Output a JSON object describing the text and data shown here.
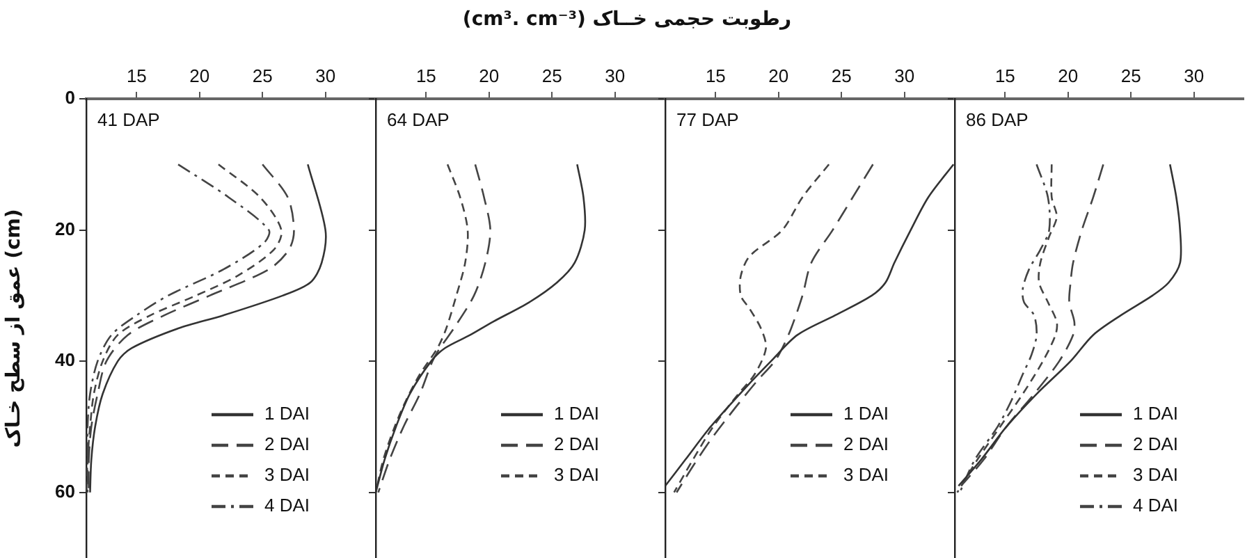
{
  "chart_data": [
    {
      "type": "line",
      "xlabel": "رطوبت حجمی خــاک (cm³. cm⁻³)",
      "ylabel": "عمق از سطح خـاک (cm)",
      "annotations": [
        "41 DAP"
      ],
      "xlim": [
        11,
        34
      ],
      "xticks": [
        15,
        20,
        25,
        30
      ],
      "ylim": [
        70,
        0
      ],
      "yticks": [
        0,
        20,
        40,
        60
      ],
      "legend": "bottom right",
      "marker": "none",
      "series": [
        {
          "name": "1 DAI",
          "color": "#333333",
          "line_style": "solid",
          "x": [
            28.6,
            30,
            29.7,
            28.8,
            26.6,
            21.9,
            18.3,
            14.6,
            13.5,
            12.3,
            11.7,
            11.4,
            11.3
          ],
          "values": [
            10,
            20,
            25,
            28,
            30,
            33,
            35,
            38,
            40,
            45,
            50,
            55,
            60
          ]
        },
        {
          "name": "2 DAI",
          "color": "#444444",
          "line_style": "dashed",
          "x": [
            25,
            27,
            27.5,
            27.1,
            25.5,
            20.8,
            17.2,
            14.3,
            12.6,
            11.9,
            11.4,
            11.2,
            11.2
          ],
          "values": [
            10,
            15,
            20,
            23,
            26,
            30,
            33,
            36,
            40,
            45,
            50,
            55,
            60
          ]
        },
        {
          "name": "3 DAI",
          "color": "#444444",
          "line_style": "dashed",
          "x": [
            21.5,
            24.8,
            26.5,
            25.9,
            23,
            19.7,
            16.1,
            13.5,
            12.3,
            11.6,
            11.3,
            11.1,
            11
          ],
          "values": [
            10,
            15,
            20,
            23,
            27,
            30,
            33,
            36,
            40,
            45,
            50,
            55,
            60
          ]
        },
        {
          "name": "4 DAI",
          "color": "#444444",
          "line_style": "dashed",
          "x": [
            18.3,
            22.3,
            25.5,
            25.1,
            21.9,
            17.5,
            15,
            13,
            11.9,
            11.3,
            11.1,
            11.1,
            11.1
          ],
          "values": [
            10,
            15,
            20,
            22,
            26,
            30,
            33,
            36,
            40,
            45,
            50,
            55,
            60
          ]
        }
      ]
    },
    {
      "type": "line",
      "annotations": [
        "64 DAP"
      ],
      "xlim": [
        11,
        34
      ],
      "xticks": [
        15,
        20,
        25,
        30
      ],
      "ylim": [
        70,
        0
      ],
      "yticks": [
        0,
        20,
        40,
        60
      ],
      "tick_labels": "x",
      "legend": "bottom right",
      "marker": "none",
      "series": [
        {
          "name": "1 DAI",
          "color": "#333333",
          "line_style": "solid",
          "x": [
            27,
            27.5,
            27.6,
            26.8,
            25.4,
            23.2,
            20.3,
            18.5,
            16.5,
            15.4,
            13.7,
            12.6,
            11.7,
            11
          ],
          "values": [
            10,
            15,
            20,
            25,
            28,
            31,
            34,
            36,
            38,
            40,
            45,
            50,
            55,
            60
          ]
        },
        {
          "name": "2 DAI",
          "color": "#444444",
          "line_style": "dashed",
          "x": [
            18.9,
            19.6,
            20.1,
            19.7,
            18.8,
            17.2,
            16.1,
            15.5,
            14.5,
            13.2,
            12.1,
            11.2
          ],
          "values": [
            10,
            15,
            20,
            25,
            30,
            35,
            38,
            40,
            45,
            50,
            55,
            60
          ]
        },
        {
          "name": "3 DAI",
          "color": "#444444",
          "line_style": "dashed",
          "x": [
            16.7,
            17.7,
            18.3,
            18.1,
            17.4,
            16.6,
            15.9,
            14.5,
            13.4,
            12.5,
            11.6,
            11
          ],
          "values": [
            10,
            15,
            20,
            25,
            30,
            35,
            38,
            42,
            46,
            50,
            55,
            60
          ]
        }
      ]
    },
    {
      "type": "line",
      "annotations": [
        "77 DAP"
      ],
      "xlim": [
        11,
        34
      ],
      "xticks": [
        15,
        20,
        25,
        30
      ],
      "ylim": [
        70,
        0
      ],
      "yticks": [
        0,
        20,
        40,
        60
      ],
      "tick_labels": "x",
      "legend": "bottom right",
      "marker": "none",
      "series": [
        {
          "name": "1 DAI",
          "color": "#333333",
          "line_style": "solid",
          "x": [
            33.9,
            31.9,
            30.5,
            29.2,
            28.5,
            27.4,
            24.5,
            21.5,
            19.4,
            17.4,
            14.6,
            12.6,
            11
          ],
          "values": [
            10,
            15,
            20,
            25,
            28,
            30,
            33,
            36,
            40,
            44,
            50,
            55,
            59
          ]
        },
        {
          "name": "2 DAI",
          "color": "#444444",
          "line_style": "dashed",
          "x": [
            27.5,
            25.9,
            24.3,
            22.6,
            21.9,
            21,
            20.3,
            19.7,
            18.3,
            16.6,
            14.6,
            13.2,
            11.9
          ],
          "values": [
            10,
            15,
            20,
            25,
            30,
            35,
            38,
            40,
            43,
            47,
            52,
            56,
            60
          ]
        },
        {
          "name": "3 DAI",
          "color": "#444444",
          "line_style": "dashed",
          "x": [
            24,
            21.9,
            20.3,
            17.7,
            17,
            17,
            17.7,
            18.6,
            19,
            18.1,
            16.8,
            14.8,
            13.2,
            11.7
          ],
          "values": [
            10,
            15,
            20,
            24,
            27,
            30,
            32,
            35,
            38,
            42,
            45,
            50,
            55,
            60
          ]
        }
      ]
    },
    {
      "type": "line",
      "annotations": [
        "86 DAP"
      ],
      "xlim": [
        11,
        34
      ],
      "xticks": [
        15,
        20,
        25,
        30
      ],
      "ylim": [
        70,
        0
      ],
      "yticks": [
        0,
        20,
        40,
        60
      ],
      "tick_labels": "x",
      "legend": "bottom right",
      "marker": "none",
      "series": [
        {
          "name": "1 DAI",
          "color": "#333333",
          "line_style": "solid",
          "x": [
            28.1,
            28.6,
            28.9,
            28.9,
            28,
            26.7,
            24.2,
            22,
            20.2,
            17.5,
            15.1,
            13.1,
            11.3
          ],
          "values": [
            10,
            15,
            20,
            25,
            28,
            30,
            33,
            36,
            40,
            45,
            50,
            55,
            59
          ]
        },
        {
          "name": "2 DAI",
          "color": "#444444",
          "line_style": "dashed",
          "x": [
            22.8,
            22,
            21.1,
            20.4,
            20.2,
            20.1,
            20.5,
            20.4,
            19.3,
            17.3,
            15.1,
            13.3,
            11.5
          ],
          "values": [
            10,
            15,
            20,
            25,
            28,
            31,
            34,
            36,
            40,
            45,
            50,
            55,
            59
          ]
        },
        {
          "name": "3 DAI",
          "color": "#444444",
          "line_style": "dashed",
          "x": [
            18.7,
            18.7,
            19.1,
            18.5,
            17.8,
            17.7,
            18.4,
            19.1,
            19,
            18,
            16.4,
            14.6,
            12.8,
            11.2
          ],
          "values": [
            10,
            15,
            18,
            21,
            25,
            28,
            31,
            34,
            36,
            40,
            45,
            50,
            55,
            60
          ]
        },
        {
          "name": "4 DAI",
          "color": "#444444",
          "line_style": "dashed",
          "x": [
            17.5,
            18.4,
            18.5,
            17.8,
            16.9,
            16.4,
            16.5,
            17.3,
            17.5,
            17.1,
            16.4,
            15.5,
            14.4,
            12.6,
            11.4
          ],
          "values": [
            10,
            15,
            20,
            23,
            26,
            29,
            31,
            33,
            36,
            39,
            42,
            46,
            50,
            55,
            60
          ]
        }
      ]
    }
  ]
}
